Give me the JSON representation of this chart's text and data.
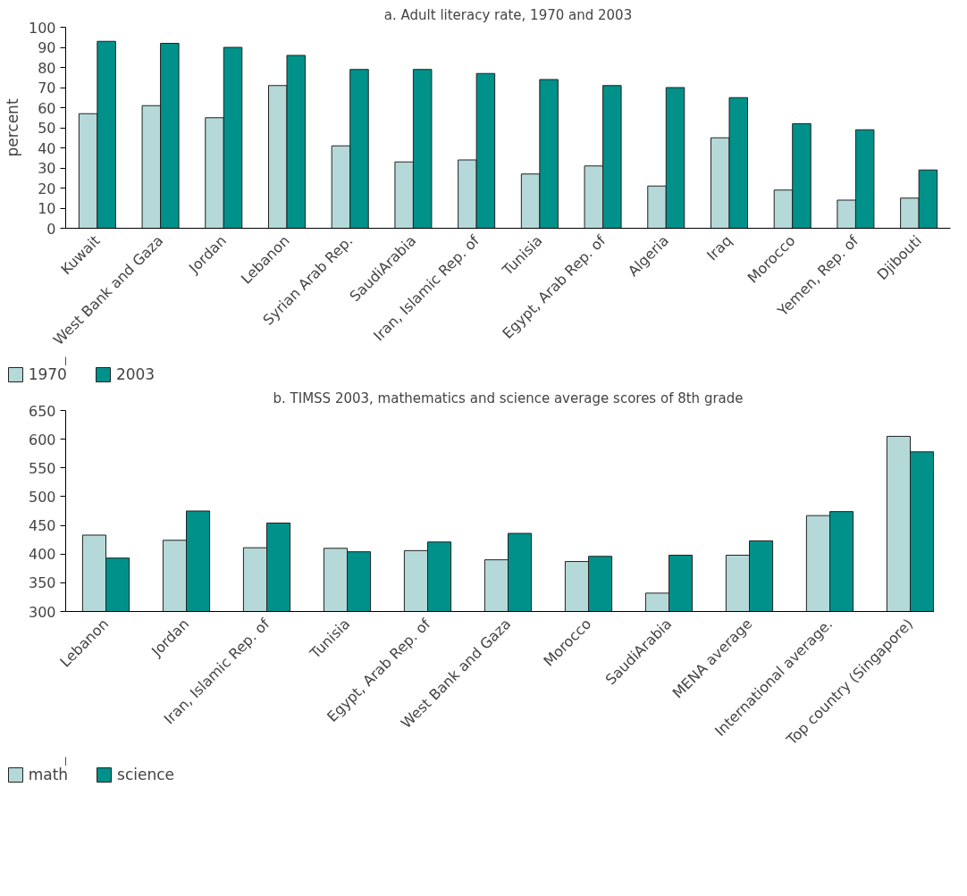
{
  "chart_data": [
    {
      "type": "bar",
      "title": "a. Adult literacy rate, 1970 and 2003",
      "ylabel": "percent",
      "categories": [
        "Kuwait",
        "West Bank and Gaza",
        "Jordan",
        "Lebanon",
        "Syrian Arab Rep.",
        "SaudiArabia",
        "Iran, Islamic Rep. of",
        "Tunisia",
        "Egypt, Arab Rep. of",
        "Algeria",
        "Iraq",
        "Morocco",
        "Yemen, Rep. of",
        "Djibouti"
      ],
      "series": [
        {
          "name": "1970",
          "color": "#b5d9d9",
          "values": [
            57,
            61,
            55,
            71,
            41,
            33,
            34,
            27,
            31,
            21,
            45,
            19,
            14,
            15
          ]
        },
        {
          "name": "2003",
          "color": "#00918a",
          "values": [
            93,
            92,
            90,
            86,
            79,
            79,
            77,
            74,
            71,
            70,
            65,
            52,
            49,
            29
          ]
        }
      ],
      "ylim": [
        0,
        100
      ],
      "yticks": [
        0,
        10,
        20,
        30,
        40,
        50,
        60,
        70,
        80,
        90,
        100
      ],
      "grid": false,
      "legend": "bottom left"
    },
    {
      "type": "bar",
      "title": "b. TIMSS 2003, mathematics and science average scores of 8th grade",
      "categories": [
        "Lebanon",
        "Jordan",
        "Iran, Islamic Rep. of",
        "Tunisia",
        "Egypt, Arab Rep. of",
        "West Bank and Gaza",
        "Morocco",
        "SaudiArabia",
        "MENA average",
        "International average.",
        "Top country (Singapore)"
      ],
      "series": [
        {
          "name": "math",
          "color": "#b5d9d9",
          "values": [
            433,
            424,
            411,
            410,
            406,
            390,
            387,
            332,
            398,
            467,
            605
          ]
        },
        {
          "name": "science",
          "color": "#00918a",
          "values": [
            393,
            475,
            454,
            404,
            421,
            436,
            396,
            398,
            423,
            474,
            578
          ]
        }
      ],
      "ylim": [
        300,
        650
      ],
      "yticks": [
        300,
        350,
        400,
        450,
        500,
        550,
        600,
        650
      ],
      "grid": false,
      "legend": "bottom left"
    }
  ]
}
